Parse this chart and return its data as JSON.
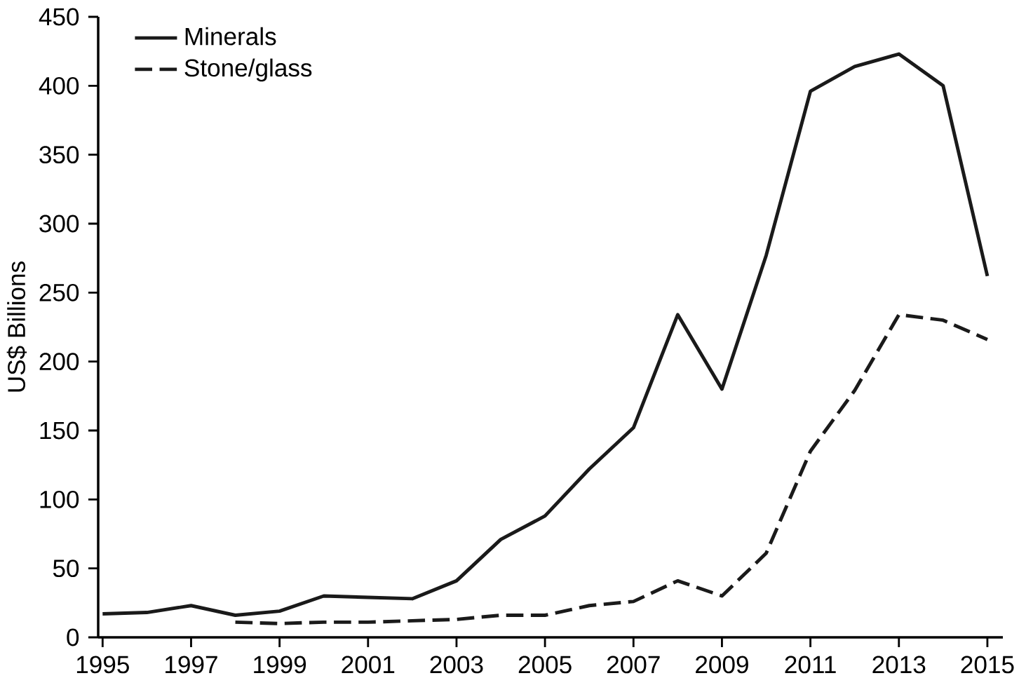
{
  "chart_data": {
    "type": "line",
    "ylabel": "US$ Billions",
    "x": [
      1995,
      1996,
      1997,
      1998,
      1999,
      2000,
      2001,
      2002,
      2003,
      2004,
      2005,
      2006,
      2007,
      2008,
      2009,
      2010,
      2011,
      2012,
      2013,
      2014,
      2015
    ],
    "series": [
      {
        "name": "Minerals",
        "color": "#1a1a1a",
        "line_style": "solid",
        "values": [
          17,
          18,
          23,
          16,
          19,
          30,
          29,
          28,
          41,
          71,
          88,
          122,
          152,
          234,
          180,
          277,
          396,
          414,
          423,
          400,
          262
        ]
      },
      {
        "name": "Stone/glass",
        "color": "#1a1a1a",
        "line_style": "dashed",
        "x": [
          1998,
          1999,
          2000,
          2001,
          2002,
          2003,
          2004,
          2005,
          2006,
          2007,
          2008,
          2009,
          2010,
          2011,
          2012,
          2013,
          2014,
          2015
        ],
        "values": [
          11,
          10,
          11,
          11,
          12,
          13,
          16,
          16,
          23,
          26,
          41,
          30,
          61,
          135,
          179,
          234,
          230,
          216
        ]
      }
    ],
    "xlim": [
      1994.9,
      2015.35
    ],
    "ylim": [
      0,
      450
    ],
    "xticks": [
      1995,
      1997,
      1999,
      2001,
      2003,
      2005,
      2007,
      2009,
      2011,
      2013,
      2015
    ],
    "yticks": [
      0,
      50,
      100,
      150,
      200,
      250,
      300,
      350,
      400,
      450
    ],
    "grid": false,
    "legend": "top left",
    "marker": "none"
  }
}
